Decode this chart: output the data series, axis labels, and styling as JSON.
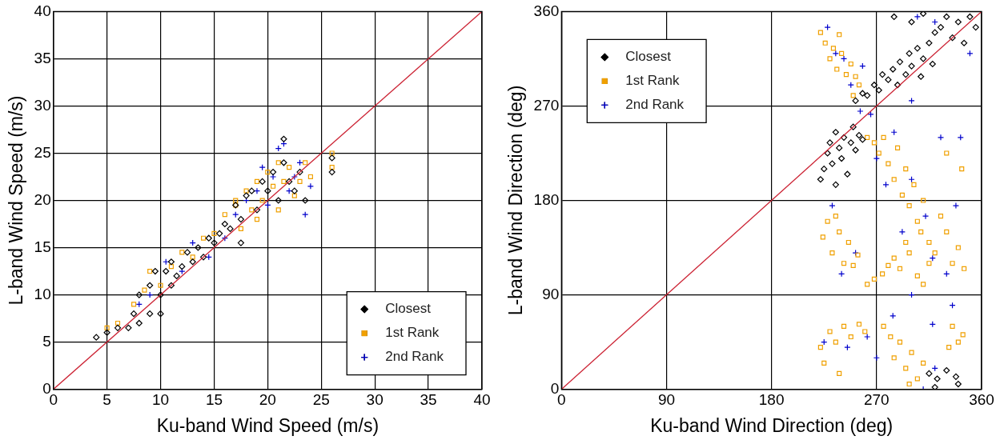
{
  "chart_data": [
    {
      "type": "scatter",
      "xlabel": "Ku-band Wind Speed (m/s)",
      "ylabel": "L-band Wind Speed (m/s)",
      "xlim": [
        0,
        40
      ],
      "ylim": [
        0,
        40
      ],
      "xticks": [
        0,
        5,
        10,
        15,
        20,
        25,
        30,
        35,
        40
      ],
      "yticks": [
        0,
        5,
        10,
        15,
        20,
        25,
        30,
        35,
        40
      ],
      "grid": true,
      "legend": "bottom right",
      "series": [
        {
          "type": "line",
          "color": "#cc2233",
          "marker": "none",
          "line_style": "solid",
          "x": [
            0,
            40
          ],
          "values": [
            0,
            40
          ]
        },
        {
          "name": "Closest",
          "color": "#000000",
          "marker": "diamond",
          "x": [
            4,
            5,
            6,
            7,
            7.5,
            8,
            8,
            9,
            9,
            9.5,
            10,
            10,
            10.5,
            11,
            11,
            11.5,
            12,
            12.5,
            13,
            13.5,
            14,
            14.5,
            15,
            15.5,
            16,
            16.5,
            17,
            17.5,
            18,
            18.5,
            19,
            19.5,
            20,
            20.5,
            21,
            21.5,
            22,
            22.5,
            23,
            23.5,
            26,
            26,
            21.5,
            17.5
          ],
          "values": [
            5.5,
            6,
            6.5,
            6.5,
            8,
            10,
            7,
            11,
            8,
            12.5,
            10,
            8,
            12.5,
            11,
            13.5,
            12,
            13,
            14.5,
            13.5,
            15,
            14,
            16,
            15.5,
            16.5,
            17.5,
            17,
            19.5,
            18,
            20.5,
            21,
            19,
            22,
            21,
            23,
            20,
            24,
            22,
            21,
            23,
            20,
            24.5,
            23,
            26.5,
            15.5
          ]
        },
        {
          "name": "1st Rank",
          "color": "#f0a000",
          "marker": "square",
          "x": [
            5,
            6,
            7.5,
            8.5,
            9,
            10,
            11,
            12,
            13,
            14,
            15,
            16,
            17,
            17.5,
            18,
            18.5,
            19,
            19.5,
            20,
            20.5,
            21,
            21.5,
            22,
            22.5,
            23,
            23.5,
            24,
            26,
            26,
            17,
            19,
            21
          ],
          "values": [
            6.5,
            7,
            9,
            10.5,
            12.5,
            11,
            13,
            14.5,
            14,
            16,
            16.5,
            18.5,
            19.5,
            17,
            21,
            19,
            22,
            20,
            23,
            21.5,
            24,
            22,
            23.5,
            20.5,
            22,
            24,
            22.5,
            25,
            23.5,
            20,
            18,
            19
          ]
        },
        {
          "name": "2nd Rank",
          "color": "#0000cc",
          "marker": "cross",
          "x": [
            8,
            9,
            10.5,
            12,
            13,
            14.5,
            16,
            17,
            18,
            19,
            20,
            20.5,
            21,
            22,
            23,
            23.5,
            24,
            19.5,
            21.5,
            22.5
          ],
          "values": [
            9,
            10,
            13.5,
            12.5,
            15.5,
            14,
            16,
            18.5,
            20,
            21,
            19.5,
            22.5,
            25.5,
            21,
            24,
            18.5,
            21.5,
            23.5,
            26,
            22.5
          ]
        }
      ]
    },
    {
      "type": "scatter",
      "xlabel": "Ku-band Wind Direction (deg)",
      "ylabel": "L-band Wind Direction (deg)",
      "xlim": [
        0,
        360
      ],
      "ylim": [
        0,
        360
      ],
      "xticks": [
        0,
        90,
        180,
        270,
        360
      ],
      "yticks": [
        0,
        90,
        180,
        270,
        360
      ],
      "grid": true,
      "legend": "top left",
      "series": [
        {
          "type": "line",
          "color": "#cc2233",
          "marker": "none",
          "line_style": "solid",
          "x": [
            0,
            360
          ],
          "values": [
            0,
            360
          ]
        },
        {
          "name": "Closest",
          "color": "#000000",
          "marker": "diamond",
          "x": [
            222,
            225,
            228,
            230,
            232,
            235,
            238,
            240,
            242,
            245,
            248,
            250,
            252,
            255,
            258,
            235,
            252,
            258,
            262,
            268,
            272,
            275,
            280,
            284,
            288,
            290,
            295,
            298,
            300,
            305,
            308,
            310,
            315,
            318,
            320,
            325,
            330,
            335,
            340,
            345,
            350,
            355,
            300,
            310,
            285,
            315,
            322,
            330,
            338,
            340,
            320
          ],
          "values": [
            200,
            210,
            225,
            235,
            215,
            245,
            230,
            220,
            240,
            205,
            235,
            250,
            228,
            242,
            238,
            195,
            275,
            282,
            280,
            290,
            285,
            300,
            295,
            305,
            290,
            312,
            300,
            320,
            308,
            325,
            298,
            315,
            330,
            310,
            340,
            345,
            355,
            335,
            350,
            330,
            355,
            345,
            350,
            358,
            355,
            15,
            10,
            18,
            12,
            5,
            2
          ]
        },
        {
          "name": "1st Rank",
          "color": "#f0a000",
          "marker": "square",
          "x": [
            222,
            226,
            230,
            233,
            236,
            240,
            244,
            248,
            252,
            255,
            250,
            238,
            262,
            268,
            272,
            276,
            280,
            285,
            288,
            292,
            295,
            298,
            302,
            305,
            308,
            310,
            315,
            320,
            325,
            330,
            335,
            340,
            345,
            343,
            330,
            262,
            268,
            275,
            280,
            285,
            290,
            295,
            298,
            305,
            310,
            315,
            224,
            228,
            232,
            238,
            242,
            246,
            250,
            254,
            235,
            222,
            225,
            230,
            235,
            238,
            242,
            248,
            255,
            260,
            276,
            282,
            285,
            290,
            295,
            300,
            305,
            310,
            298,
            335,
            340,
            344,
            332
          ],
          "values": [
            340,
            330,
            315,
            325,
            305,
            320,
            300,
            310,
            298,
            290,
            280,
            338,
            240,
            235,
            225,
            240,
            215,
            200,
            230,
            185,
            210,
            175,
            195,
            160,
            150,
            180,
            140,
            130,
            165,
            150,
            120,
            135,
            115,
            210,
            225,
            100,
            105,
            110,
            118,
            125,
            115,
            140,
            130,
            108,
            100,
            120,
            145,
            160,
            130,
            150,
            120,
            140,
            118,
            128,
            165,
            40,
            25,
            55,
            45,
            15,
            60,
            50,
            62,
            55,
            60,
            50,
            30,
            45,
            20,
            35,
            10,
            25,
            5,
            60,
            45,
            52,
            40
          ]
        },
        {
          "name": "2nd Rank",
          "color": "#0000cc",
          "marker": "cross",
          "x": [
            228,
            235,
            242,
            248,
            258,
            265,
            270,
            278,
            285,
            300,
            312,
            325,
            338,
            342,
            330,
            318,
            300,
            292,
            240,
            252,
            232,
            225,
            245,
            262,
            270,
            284,
            318,
            335,
            310,
            320,
            305,
            320,
            350,
            256,
            300
          ],
          "values": [
            345,
            320,
            315,
            290,
            308,
            262,
            220,
            195,
            245,
            200,
            165,
            240,
            175,
            240,
            110,
            125,
            90,
            150,
            110,
            130,
            175,
            45,
            40,
            50,
            30,
            70,
            62,
            80,
            0,
            20,
            355,
            350,
            320,
            265,
            275
          ]
        }
      ]
    }
  ]
}
